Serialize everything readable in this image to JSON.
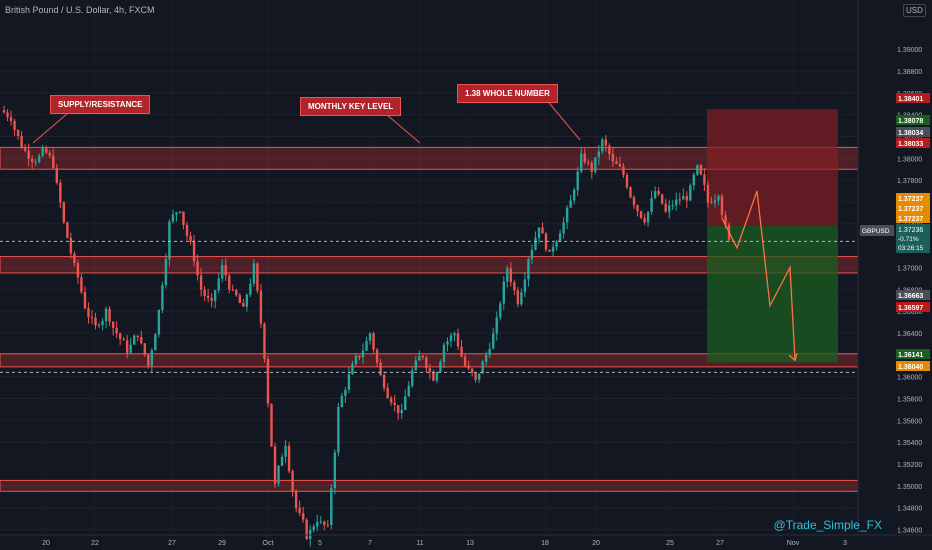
{
  "header": {
    "title": "British Pound / U.S. Dollar, 4h, FXCM",
    "currency": "USD"
  },
  "watermark": "@Trade_Simple_FX",
  "annotations": {
    "supply": "SUPPLY/RESISTANCE",
    "monthly": "MONTHLY KEY LEVEL",
    "whole": "1.38 WHOLE NUMBER"
  },
  "colors": {
    "background": "#131722",
    "up": "#26a69a",
    "down": "#ef5350",
    "zone_fill": "#e53935",
    "profit": "#1b5e20",
    "loss": "#8b1e24",
    "projection": "#ff7043"
  },
  "chart_data": {
    "type": "candlestick",
    "symbol": "GBPUSD",
    "timeframe": "4h",
    "ylim": [
      1.3455,
      1.3945
    ],
    "yticks": [
      "1.39000",
      "1.38800",
      "1.38600",
      "1.38400",
      "1.38200",
      "1.38000",
      "1.37800",
      "1.37600",
      "1.37400",
      "1.37200",
      "1.37000",
      "1.36800",
      "1.36600",
      "1.36400",
      "1.36200",
      "1.36000",
      "1.35800",
      "1.35600",
      "1.35400",
      "1.35200",
      "1.35000",
      "1.34800",
      "1.34600"
    ],
    "xticks": [
      "20",
      "22",
      "27",
      "29",
      "Oct",
      "5",
      "7",
      "11",
      "13",
      "18",
      "20",
      "25",
      "27",
      "Nov",
      "3"
    ],
    "zones": [
      {
        "name": "supply/resistance",
        "low": 1.379,
        "high": 1.381
      },
      {
        "name": "support-1.370",
        "low": 1.3695,
        "high": 1.371
      },
      {
        "name": "support-1.361",
        "low": 1.3609,
        "high": 1.3621
      },
      {
        "name": "support-1.350",
        "low": 1.3495,
        "high": 1.3505
      }
    ],
    "position": {
      "side": "short",
      "entry": 1.3738,
      "stop": 1.3845,
      "target": 1.3613
    },
    "projection_path": [
      1.3745,
      1.3718,
      1.377,
      1.3665,
      1.37,
      1.3615
    ],
    "price_labels": [
      {
        "text": "1.38401",
        "kind": "stop"
      },
      {
        "text": "1.38078",
        "kind": "up"
      },
      {
        "text": "1.38034",
        "kind": "grey"
      },
      {
        "text": "1.38033",
        "kind": "down"
      },
      {
        "text": "1.37237",
        "kind": "entry"
      },
      {
        "text": "1.37237",
        "kind": "entry"
      },
      {
        "text": "1.37237",
        "kind": "entry"
      },
      {
        "text": "1.36663",
        "kind": "grey"
      },
      {
        "text": "1.36597",
        "kind": "down"
      },
      {
        "text": "1.36141",
        "kind": "up"
      },
      {
        "text": "1.36040",
        "kind": "entry"
      }
    ],
    "current": {
      "symbol": "GBPUSD",
      "price": "1.37236",
      "change": "-0.71%",
      "countdown": "03:26:15"
    },
    "close_path": [
      1.3838,
      1.3812,
      1.38,
      1.3805,
      1.3795,
      1.374,
      1.37,
      1.3665,
      1.3645,
      1.366,
      1.364,
      1.3625,
      1.364,
      1.361,
      1.366,
      1.374,
      1.3755,
      1.372,
      1.368,
      1.3665,
      1.37,
      1.3675,
      1.366,
      1.37,
      1.362,
      1.35,
      1.354,
      1.348,
      1.3455,
      1.347,
      1.346,
      1.357,
      1.36,
      1.362,
      1.364,
      1.36,
      1.358,
      1.3565,
      1.3605,
      1.362,
      1.36,
      1.363,
      1.364,
      1.361,
      1.3595,
      1.362,
      1.365,
      1.37,
      1.367,
      1.371,
      1.374,
      1.371,
      1.3735,
      1.376,
      1.38,
      1.379,
      1.3815,
      1.3795,
      1.3785,
      1.376,
      1.3745,
      1.377,
      1.375,
      1.376,
      1.3765,
      1.379,
      1.376,
      1.377,
      1.3723
    ]
  }
}
